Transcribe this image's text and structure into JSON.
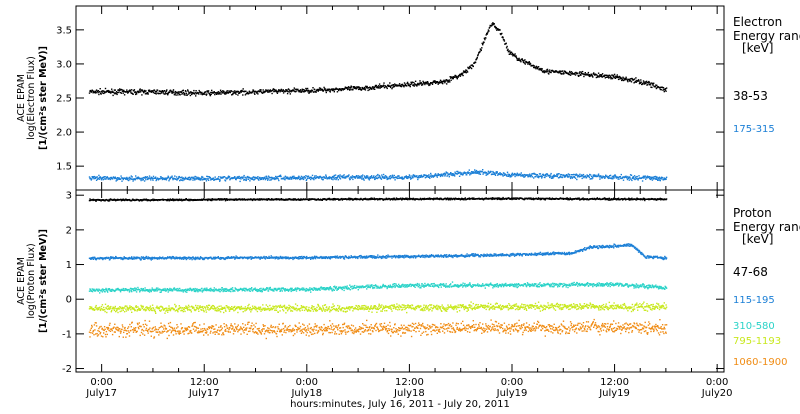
{
  "chart_data": {
    "type": "scatter",
    "xlabel": "hours:minutes, July 16, 2011 - July 20, 2011",
    "x_ticks": [
      {
        "t": 0,
        "time": "0:00",
        "day": "July17"
      },
      {
        "t": 12,
        "time": "12:00",
        "day": "July17"
      },
      {
        "t": 24,
        "time": "0:00",
        "day": "July18"
      },
      {
        "t": 36,
        "time": "12:00",
        "day": "July18"
      },
      {
        "t": 48,
        "time": "0:00",
        "day": "July19"
      },
      {
        "t": 60,
        "time": "12:00",
        "day": "July19"
      },
      {
        "t": 72,
        "time": "0:00",
        "day": "July20"
      }
    ],
    "xlim_hours": [
      -3,
      72.8
    ],
    "data_end_hour": 66.0,
    "panels": [
      {
        "key": "electron",
        "ylabel": [
          "ACE EPAM",
          "log(Electron Flux)",
          "[1/(cm²s ster MeV)]"
        ],
        "ylim": [
          1.15,
          3.85
        ],
        "yticks": [
          "1.5",
          "2.0",
          "2.5",
          "3.0",
          "3.5"
        ],
        "ytick_values": [
          1.5,
          2.0,
          2.5,
          3.0,
          3.5
        ],
        "legend_title": [
          "Electron",
          "Energy range",
          "[keV]"
        ],
        "series": [
          {
            "name": "38-53",
            "color": "#000000",
            "noise": 0.035,
            "x": [
              -1.5,
              6,
              12,
              18,
              24,
              30,
              35,
              40,
              42,
              43.5,
              44.5,
              45.5,
              46.5,
              47.5,
              48.5,
              50,
              52,
              56,
              60,
              64,
              66
            ],
            "y": [
              2.6,
              2.6,
              2.58,
              2.6,
              2.62,
              2.65,
              2.7,
              2.75,
              2.85,
              3.0,
              3.3,
              3.6,
              3.5,
              3.2,
              3.1,
              3.0,
              2.9,
              2.86,
              2.82,
              2.72,
              2.62
            ]
          },
          {
            "name": "175-315",
            "color": "#1b7fd6",
            "noise": 0.035,
            "x": [
              -1.5,
              12,
              24,
              36,
              44,
              48,
              56,
              66
            ],
            "y": [
              1.33,
              1.33,
              1.34,
              1.35,
              1.42,
              1.38,
              1.36,
              1.33
            ]
          }
        ]
      },
      {
        "key": "proton",
        "ylabel": [
          "ACE EPAM",
          "log(Proton Flux)",
          "[1/(cm²s ster MeV)]"
        ],
        "ylim": [
          -2.1,
          3.15
        ],
        "yticks": [
          "-2",
          "-1",
          "0",
          "1",
          "2",
          "3"
        ],
        "ytick_values": [
          -2,
          -1,
          0,
          1,
          2,
          3
        ],
        "legend_title": [
          "Proton",
          "Energy range",
          "[keV]"
        ],
        "series": [
          {
            "name": "47-68",
            "color": "#000000",
            "noise": 0.025,
            "x": [
              -1.5,
              24,
              48,
              66
            ],
            "y": [
              2.88,
              2.9,
              2.92,
              2.9
            ]
          },
          {
            "name": "115-195",
            "color": "#1b7fd6",
            "noise": 0.04,
            "x": [
              -1.5,
              24,
              36,
              48,
              55,
              57,
              62,
              63.5,
              66
            ],
            "y": [
              1.2,
              1.22,
              1.25,
              1.3,
              1.35,
              1.52,
              1.58,
              1.25,
              1.2
            ]
          },
          {
            "name": "310-580",
            "color": "#2bd3c8",
            "noise": 0.06,
            "x": [
              -1.5,
              24,
              36,
              48,
              60,
              66
            ],
            "y": [
              0.28,
              0.3,
              0.42,
              0.42,
              0.45,
              0.35
            ]
          },
          {
            "name": "795-1193",
            "color": "#c8e81e",
            "noise": 0.1,
            "x": [
              -1.5,
              24,
              48,
              66
            ],
            "y": [
              -0.25,
              -0.25,
              -0.2,
              -0.2
            ]
          },
          {
            "name": "1060-1900",
            "color": "#f08c14",
            "noise": 0.18,
            "x": [
              -1.5,
              24,
              48,
              66
            ],
            "y": [
              -0.85,
              -0.85,
              -0.8,
              -0.8
            ]
          }
        ]
      }
    ]
  }
}
